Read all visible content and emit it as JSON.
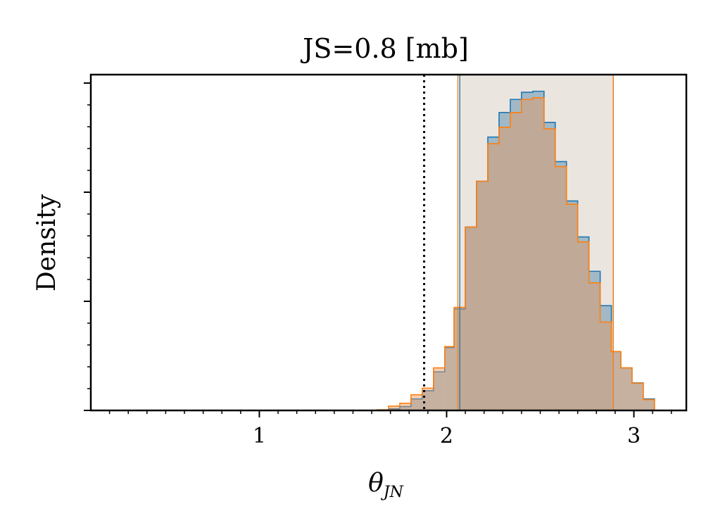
{
  "chart_data": {
    "type": "histogram",
    "title": "JS=0.8 [mb]",
    "xlabel": "θ",
    "xlabel_subscript": "JN",
    "ylabel": "Density",
    "xlim": [
      0.1,
      3.28
    ],
    "ylim": [
      0,
      1.0
    ],
    "xticks": [
      1,
      2,
      3
    ],
    "xtick_labels": [
      "1",
      "2",
      "3"
    ],
    "ytick_labels_shown": false,
    "grid": false,
    "reference_line": {
      "x": 1.88,
      "style": "dotted",
      "color": "#000000"
    },
    "credible_bands": [
      {
        "series": "blue",
        "lower": 2.07,
        "upper": 2.89
      },
      {
        "series": "orange",
        "lower": 2.06,
        "upper": 2.89
      }
    ],
    "bin_edges": [
      1.63,
      1.69,
      1.75,
      1.81,
      1.87,
      1.93,
      1.99,
      2.04,
      2.1,
      2.16,
      2.22,
      2.28,
      2.34,
      2.4,
      2.46,
      2.52,
      2.58,
      2.64,
      2.7,
      2.76,
      2.82,
      2.88,
      2.93,
      2.99,
      3.05,
      3.11,
      3.14
    ],
    "series": [
      {
        "color": "#1f77b4",
        "fill": "rgba(70,130,170,0.45)",
        "values": [
          0.0,
          0.005,
          0.012,
          0.035,
          0.06,
          0.118,
          0.192,
          0.31,
          0.56,
          0.7,
          0.835,
          0.91,
          0.95,
          0.972,
          0.975,
          0.88,
          0.76,
          0.64,
          0.53,
          0.425,
          0.32,
          0.18,
          0.13,
          0.084,
          0.035,
          0.0
        ]
      },
      {
        "color": "#ff7f0e",
        "fill": "rgba(230,150,90,0.45)",
        "values": [
          0.002,
          0.013,
          0.022,
          0.048,
          0.068,
          0.13,
          0.195,
          0.315,
          0.56,
          0.7,
          0.815,
          0.865,
          0.91,
          0.95,
          0.955,
          0.86,
          0.745,
          0.63,
          0.515,
          0.39,
          0.27,
          0.18,
          0.13,
          0.083,
          0.033,
          0.0
        ]
      }
    ]
  }
}
